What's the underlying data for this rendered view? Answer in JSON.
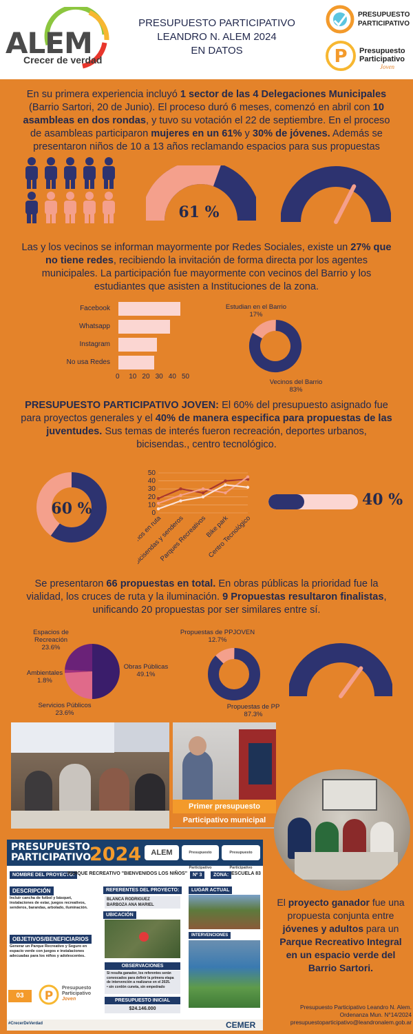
{
  "header": {
    "logo_brand": "ALEM",
    "logo_slogan": "Crecer de verdad",
    "title_line1": "PRESUPUESTO PARTICIPATIVO",
    "title_line2": "LEANDRO N. ALEM 2024",
    "title_line3": "EN DATOS",
    "logo_pp_line1": "PRESUPUESTO",
    "logo_pp_line2": "PARTICIPATIVO",
    "logo_ppj_line1": "Presupuesto",
    "logo_ppj_line2": "Participativo",
    "logo_ppj_line3": "Joven"
  },
  "section1": {
    "p1": "En su primera experiencia incluyó ",
    "b1": "1 sector de las 4 Delegaciones Municipales",
    "p2": " (Barrio Sartori, 20 de Junio). El proceso duró 6 meses, comenzó en abril con ",
    "b2": "10 asambleas en dos rondas",
    "p3": ", y tuvo su votación el 22 de septiembre. En el proceso de asambleas participaron ",
    "b3": "mujeres en un 61%",
    "p4": " y ",
    "b4": "30% de jóvenes.",
    "p5": " Además se presentaron niños de 10 a 13 años reclamando espacios para sus propuestas",
    "gauge1_label": "61 %",
    "gauge1_value": 61,
    "gauge2_value": 30,
    "people_highlight": 6,
    "people_total": 10
  },
  "section2": {
    "p1": "Las y los vecinos se informan mayormente por Redes Sociales, existe un ",
    "b1": "27% que no tiene redes",
    "p2": ", recibiendo la invitación de forma directa por los agentes municipales. La participación fue mayormente con vecinos del Barrio y los estudiantes que asisten a Instituciones de la zona."
  },
  "section3": {
    "b1": "PRESUPUESTO PARTICIPATIVO JOVEN:",
    "p1": " El 60% del presupuesto asignado fue para proyectos generales y el ",
    "b2": "40% de manera especifica para propuestas de las juventudes.",
    "p2": " Sus temas de interés fueron recreación, deportes urbanos, bicisendas., centro tecnológico.",
    "donut_label": "60 %",
    "donut_value": 60,
    "bar_label": "40 %",
    "bar_value": 40
  },
  "section4": {
    "p1": "Se presentaron ",
    "b1": "66 propuestas en total.",
    "p2": " En obras públicas la prioridad fue la vialidad, los cruces de ruta y la iluminación. ",
    "b2": "9 Propuestas resultaron finalistas",
    "p3": ", unificando 20 propuestas por ser similares entre sí.",
    "gauge_value": 70
  },
  "photos": {
    "photo2_caption_line1": "Primer presupuesto",
    "photo2_caption_line2": "Participativo municipal"
  },
  "doc": {
    "title_line1": "PRESUPUESTO",
    "title_line2": "PARTICIPATIVO",
    "year": "2024",
    "nombre_label": "NOMBRE DEL PROYECTO:",
    "nombre_value": "PARQUE RECREATIVO \"BIENVENIDOS LOS NIÑOS\"",
    "nro_label": "Nº 3",
    "zona_label": "ZONA:",
    "zona_value": "ESCUELA 83",
    "descripcion_label": "DESCRIPCIÓN",
    "descripcion_text": "Incluir cancha de futbol y básquet, instalaciones de estar, juegos recreativos, senderos, barandas, arbolado, iluminación.",
    "referentes_label": "REFERENTES DEL PROYECTO:",
    "referente1": "BLANCA RODRIGUEZ",
    "referente2": "BARBOZA ANA MARIEL",
    "lugar_label": "LUGAR ACTUAL",
    "ubicacion_label": "UBICACIÓN",
    "objetivos_label": "OBJETIVOS/BENEFICIARIOS",
    "objetivos_text": "Generar un Parque Recreativo y Seguro en espacio verde con juegos e instalaciones adecuadas para los niños y adolescentes.",
    "intervenciones_label": "INTERVENCIONES",
    "observaciones_label": "OBSERVACIONES",
    "observaciones_text": "Si resulta ganador, los referentes serán convocados para definir la primera etapa de intervención a realizarse en el 2025.",
    "observaciones_bullet": "• sin cordón cuneta, sin empedrado",
    "presupuesto_label": "PRESUPUESTO INICIAL",
    "presupuesto_value": "$24.146.000",
    "page_number": "03",
    "ppj_line1": "Presupuesto",
    "ppj_line2": "Participativo",
    "ppj_line3": "Joven",
    "hashtag": "#CrecerDeVerdad",
    "cemer": "CEMER",
    "logo_alem": "ALEM",
    "logo_pp": "Presupuesto Participativo",
    "logo_ppj": "Presupuesto Participativo"
  },
  "winner": {
    "p1": "El ",
    "b1": "proyecto ganador",
    "p2": " fue una propuesta conjunta entre ",
    "b2": "jóvenes y adultos",
    "p3": " para un ",
    "b3": "Parque Recreativo Integral en un espacio verde del Barrio Sartori."
  },
  "footer": {
    "line1": "Presupuesto Participativo Leandro N. Alem.",
    "line2": "Ordenanza Mun. N°14/2024",
    "line3": "presupuestoparticipativo@leandronalem.gob.ar"
  },
  "chart_data": [
    {
      "type": "bar",
      "orientation": "horizontal",
      "categories": [
        "Facebook",
        "Whatsapp",
        "Instagram",
        "No usa Redes"
      ],
      "values": [
        47,
        39,
        29,
        27
      ],
      "xticks": [
        "0",
        "10",
        "20",
        "30",
        "40",
        "50"
      ],
      "xlim": [
        0,
        50
      ],
      "color": "#fbd6d2"
    },
    {
      "type": "pie",
      "style": "donut",
      "labels": [
        "Estudian en el Barrio",
        "Vecinos del Barrio"
      ],
      "label_values": [
        "17%",
        "83%"
      ],
      "values": [
        17,
        83
      ],
      "colors": [
        "#f4a08c",
        "#2d3370"
      ]
    },
    {
      "type": "line",
      "categories": [
        "Caminos en ruta",
        "Bicisendas y senderos",
        "Parques Recreativos",
        "Bike park",
        "Centro Tecnológico"
      ],
      "yticks": [
        "0",
        "10",
        "20",
        "30",
        "40",
        "50"
      ],
      "ylim": [
        0,
        50
      ],
      "series": [
        {
          "values": [
            18,
            30,
            25,
            40,
            42
          ],
          "color": "#a8382e"
        },
        {
          "values": [
            12,
            22,
            30,
            25,
            45
          ],
          "color": "#f4a08c"
        },
        {
          "values": [
            5,
            15,
            20,
            35,
            32
          ],
          "color": "#fbe2d8"
        }
      ]
    },
    {
      "type": "pie",
      "labels": [
        "Obras Públicas",
        "Servicios Públicos",
        "Ambientales",
        "Espacios de Recreación"
      ],
      "label_values": [
        "49.1%",
        "23.6%",
        "1.8%",
        "23.6%"
      ],
      "values": [
        49.1,
        23.6,
        1.8,
        23.6
      ],
      "colors": [
        "#3a1d6b",
        "#e06a8a",
        "#a03080",
        "#6a2278"
      ]
    },
    {
      "type": "pie",
      "style": "donut",
      "labels": [
        "Propuestas de PPJOVEN",
        "Propuestas de PP"
      ],
      "label_values": [
        "12.7%",
        "87.3%"
      ],
      "values": [
        12.7,
        87.3
      ],
      "colors": [
        "#f4a08c",
        "#2d3370"
      ]
    }
  ]
}
